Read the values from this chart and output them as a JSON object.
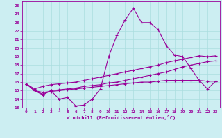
{
  "title": "",
  "xlabel": "Windchill (Refroidissement éolien,°C)",
  "background_color": "#cceef2",
  "grid_color": "#aadddf",
  "line_color": "#990099",
  "xlim": [
    -0.5,
    23.5
  ],
  "ylim": [
    13,
    25.5
  ],
  "xticks": [
    0,
    1,
    2,
    3,
    4,
    5,
    6,
    7,
    8,
    9,
    10,
    11,
    12,
    13,
    14,
    15,
    16,
    17,
    18,
    19,
    20,
    21,
    22,
    23
  ],
  "yticks": [
    13,
    14,
    15,
    16,
    17,
    18,
    19,
    20,
    21,
    22,
    23,
    24,
    25
  ],
  "line1_x": [
    0,
    1,
    2,
    3,
    4,
    5,
    6,
    7,
    8,
    9,
    10,
    11,
    12,
    13,
    14,
    15,
    16,
    17,
    18,
    19,
    20,
    21,
    22,
    23
  ],
  "line1_y": [
    15.8,
    15.0,
    14.5,
    15.0,
    14.0,
    14.2,
    13.2,
    13.3,
    14.0,
    15.2,
    19.0,
    21.5,
    23.3,
    24.7,
    23.0,
    23.0,
    22.2,
    20.3,
    19.2,
    19.0,
    17.6,
    16.2,
    15.2,
    16.1
  ],
  "line2_x": [
    0,
    1,
    2,
    3,
    4,
    5,
    6,
    7,
    8,
    9,
    10,
    11,
    12,
    13,
    14,
    15,
    16,
    17,
    18,
    19,
    20,
    21,
    22,
    23
  ],
  "line2_y": [
    15.8,
    15.0,
    14.6,
    15.0,
    15.1,
    15.2,
    15.3,
    15.5,
    15.6,
    15.7,
    15.9,
    16.0,
    16.2,
    16.4,
    16.6,
    16.8,
    17.0,
    17.2,
    17.5,
    17.8,
    18.0,
    18.2,
    18.4,
    18.5
  ],
  "line3_x": [
    0,
    1,
    2,
    3,
    4,
    5,
    6,
    7,
    8,
    9,
    10,
    11,
    12,
    13,
    14,
    15,
    16,
    17,
    18,
    19,
    20,
    21,
    22,
    23
  ],
  "line3_y": [
    15.8,
    15.2,
    15.5,
    15.7,
    15.8,
    15.9,
    16.0,
    16.2,
    16.4,
    16.6,
    16.8,
    17.0,
    17.2,
    17.4,
    17.6,
    17.8,
    18.0,
    18.3,
    18.5,
    18.7,
    18.9,
    19.1,
    19.0,
    19.1
  ],
  "line4_x": [
    0,
    1,
    2,
    3,
    4,
    5,
    6,
    7,
    8,
    9,
    10,
    11,
    12,
    13,
    14,
    15,
    16,
    17,
    18,
    19,
    20,
    21,
    22,
    23
  ],
  "line4_y": [
    15.8,
    15.0,
    14.8,
    14.9,
    15.0,
    15.1,
    15.2,
    15.3,
    15.4,
    15.5,
    15.6,
    15.7,
    15.8,
    15.9,
    16.0,
    16.0,
    16.1,
    16.2,
    16.2,
    16.2,
    16.2,
    16.2,
    16.1,
    16.1
  ]
}
